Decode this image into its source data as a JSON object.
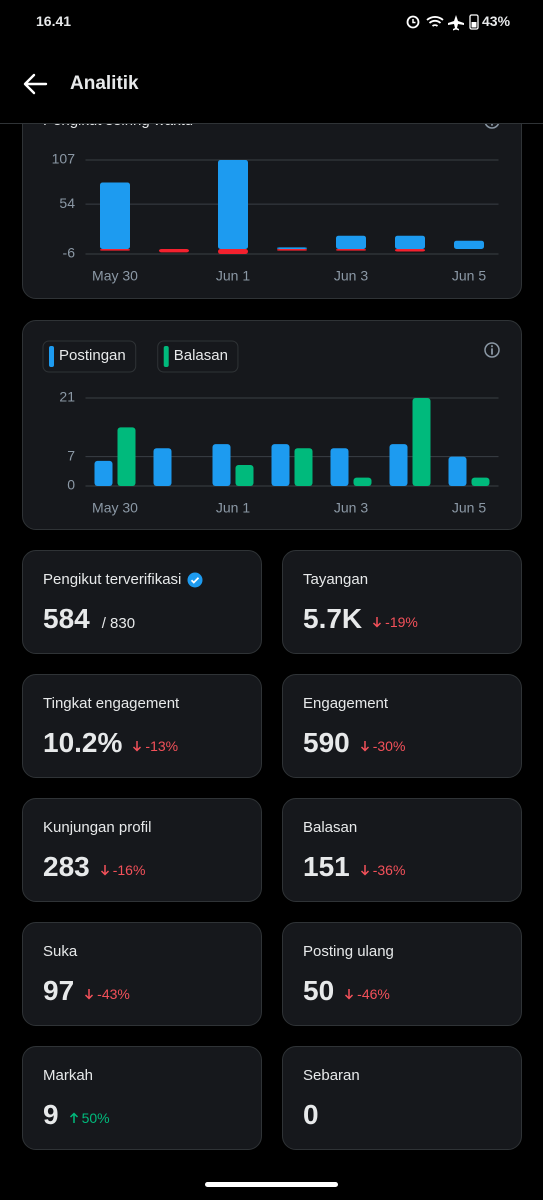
{
  "status_bar": {
    "time": "16.41",
    "battery": "43%"
  },
  "header": {
    "title": "Analitik"
  },
  "chart_data": [
    {
      "type": "bar",
      "title": "Pengikut seiring waktu",
      "categories": [
        "May 30",
        null,
        "Jun 1",
        null,
        "Jun 3",
        null,
        "Jun 5"
      ],
      "series": [
        {
          "color": "#1d9bf0",
          "values": [
            80,
            0,
            107,
            2,
            16,
            16,
            10
          ]
        },
        {
          "color": "#f4212e",
          "values": [
            -2,
            -4,
            -6,
            -2,
            -2,
            -3,
            0
          ]
        }
      ],
      "ylim": [
        -6,
        107
      ],
      "yticks": [
        -6,
        54,
        107
      ],
      "grid": true
    },
    {
      "type": "grouped_bar",
      "categories": [
        "May 30",
        null,
        "Jun 1",
        null,
        "Jun 3",
        null,
        "Jun 5"
      ],
      "series": [
        {
          "name": "Postingan",
          "color": "#1d9bf0",
          "values": [
            6,
            9,
            10,
            10,
            9,
            10,
            7
          ]
        },
        {
          "name": "Balasan",
          "color": "#00ba7c",
          "values": [
            14,
            0,
            5,
            9,
            2,
            21,
            2
          ]
        }
      ],
      "ylim": [
        0,
        21
      ],
      "yticks": [
        0,
        7,
        21
      ],
      "grid": true
    }
  ],
  "stats": [
    {
      "label": "Pengikut terverifikasi",
      "value": "584",
      "total": "/ 830",
      "verified": true
    },
    {
      "label": "Tayangan",
      "value": "5.7K",
      "change": "-19%",
      "trend": "down"
    },
    {
      "label": "Tingkat engagement",
      "value": "10.2%",
      "change": "-13%",
      "trend": "down"
    },
    {
      "label": "Engagement",
      "value": "590",
      "change": "-30%",
      "trend": "down"
    },
    {
      "label": "Kunjungan profil",
      "value": "283",
      "change": "-16%",
      "trend": "down"
    },
    {
      "label": "Balasan",
      "value": "151",
      "change": "-36%",
      "trend": "down"
    },
    {
      "label": "Suka",
      "value": "97",
      "change": "-43%",
      "trend": "down"
    },
    {
      "label": "Posting ulang",
      "value": "50",
      "change": "-46%",
      "trend": "down"
    },
    {
      "label": "Markah",
      "value": "9",
      "change": "50%",
      "trend": "up"
    },
    {
      "label": "Sebaran",
      "value": "0"
    }
  ]
}
